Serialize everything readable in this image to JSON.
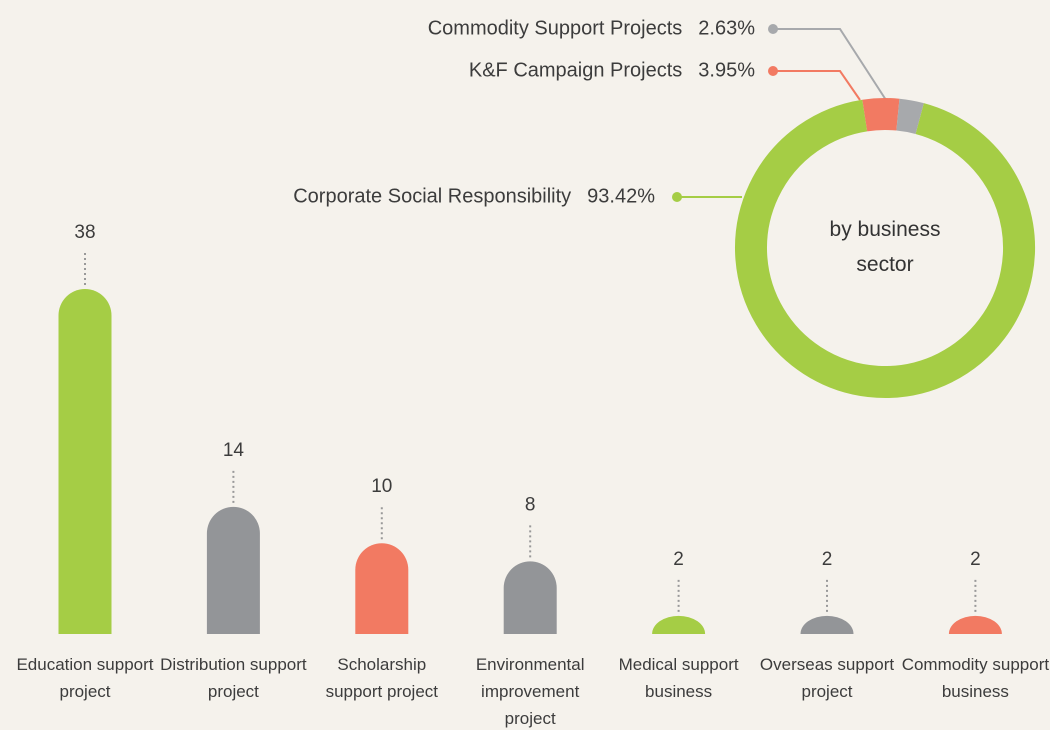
{
  "chart_data": [
    {
      "type": "bar",
      "categories": [
        "Education support project",
        "Distribution support project",
        "Scholarship support project",
        "Environmental improvement project",
        "Medical support business",
        "Overseas support project",
        "Commodity support business"
      ],
      "values": [
        38,
        14,
        10,
        8,
        2,
        2,
        2
      ],
      "colors": [
        "#a5cd45",
        "#939598",
        "#f27a62",
        "#939598",
        "#a5cd45",
        "#939598",
        "#f27a62"
      ]
    },
    {
      "type": "donut",
      "title": "by business sector",
      "categories": [
        "Corporate Social Responsibility",
        "K&F Campaign Projects",
        "Commodity Support Projects"
      ],
      "values": [
        93.42,
        3.95,
        2.63
      ],
      "value_labels": [
        "93.42%",
        "3.95%",
        "2.63%"
      ],
      "colors": [
        "#a5cd45",
        "#f27a62",
        "#a7a9ac"
      ]
    }
  ]
}
